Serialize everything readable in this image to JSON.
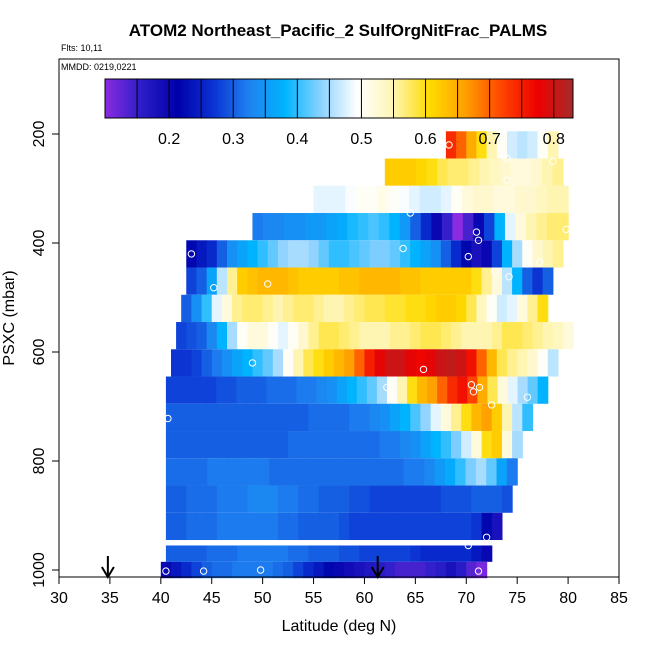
{
  "chart_data": {
    "type": "heatmap",
    "title": "ATOM2 Northeast_Pacific_2 SulfOrgNitFrac_PALMS",
    "flights_label": "Flts: 10,11",
    "date_label": "MMDD: 0219,0221",
    "xlabel": "Latitude (deg N)",
    "ylabel": "PSXC (mbar)",
    "xlim": [
      30,
      85
    ],
    "ylim": [
      1010,
      0
    ],
    "x_ticks": [
      30,
      35,
      40,
      45,
      50,
      55,
      60,
      65,
      70,
      75,
      80,
      85
    ],
    "y_ticks": [
      200,
      400,
      600,
      800,
      1000
    ],
    "y_reversed": true,
    "colorbar": {
      "range": [
        0.1,
        0.83
      ],
      "ticks": [
        0.2,
        0.3,
        0.4,
        0.5,
        0.6,
        0.7,
        0.8
      ],
      "divisions": [
        0.15,
        0.2,
        0.25,
        0.3,
        0.35,
        0.4,
        0.45,
        0.5,
        0.55,
        0.6,
        0.65,
        0.7,
        0.75,
        0.8
      ],
      "colors": [
        "#8a2be2",
        "#2b1ec8",
        "#0000aa",
        "#0a32d2",
        "#1e82f0",
        "#00b4ff",
        "#8cd2ff",
        "#ffffff",
        "#fff5b4",
        "#ffdc00",
        "#ffa000",
        "#ff4600",
        "#ee0000",
        "#a52a2a"
      ]
    },
    "layers": [
      {
        "pressure": 220,
        "lat_start": 68,
        "lat_end": 79,
        "values": [
          0.74,
          0.7,
          0.65,
          0.6,
          0.55,
          0.5,
          0.47,
          0.46,
          0.47,
          0.5,
          0.55
        ]
      },
      {
        "pressure": 270,
        "lat_start": 62,
        "lat_end": 79.5,
        "values": [
          0.62,
          0.62,
          0.62,
          0.61,
          0.6,
          0.58,
          0.57,
          0.57,
          0.56,
          0.55,
          0.54,
          0.53,
          0.52,
          0.52,
          0.53,
          0.55,
          0.56
        ]
      },
      {
        "pressure": 320,
        "lat_start": 55,
        "lat_end": 80,
        "values": [
          0.48,
          0.48,
          0.48,
          0.49,
          0.5,
          0.5,
          0.51,
          0.5,
          0.49,
          0.48,
          0.47,
          0.47,
          0.48,
          0.5,
          0.52,
          0.53,
          0.53,
          0.52,
          0.52,
          0.53,
          0.53,
          0.54,
          0.55,
          0.55
        ]
      },
      {
        "pressure": 370,
        "lat_start": 49,
        "lat_end": 80,
        "values": [
          0.32,
          0.33,
          0.33,
          0.34,
          0.34,
          0.35,
          0.35,
          0.36,
          0.37,
          0.39,
          0.4,
          0.41,
          0.4,
          0.38,
          0.35,
          0.3,
          0.26,
          0.2,
          0.15,
          0.1,
          0.14,
          0.2,
          0.28,
          0.38,
          0.48,
          0.52,
          0.55,
          0.56,
          0.57,
          0.57
        ]
      },
      {
        "pressure": 420,
        "lat_start": 42.5,
        "lat_end": 79.5,
        "values": [
          0.22,
          0.24,
          0.26,
          0.3,
          0.34,
          0.36,
          0.38,
          0.4,
          0.42,
          0.44,
          0.45,
          0.45,
          0.44,
          0.42,
          0.4,
          0.4,
          0.41,
          0.42,
          0.43,
          0.43,
          0.42,
          0.4,
          0.38,
          0.36,
          0.34,
          0.3,
          0.26,
          0.22,
          0.18,
          0.2,
          0.28,
          0.38,
          0.45,
          0.5,
          0.53,
          0.55,
          0.56
        ]
      },
      {
        "pressure": 470,
        "lat_start": 42.5,
        "lat_end": 78.5,
        "values": [
          0.28,
          0.3,
          0.36,
          0.46,
          0.56,
          0.62,
          0.63,
          0.64,
          0.64,
          0.64,
          0.63,
          0.62,
          0.62,
          0.62,
          0.62,
          0.63,
          0.63,
          0.64,
          0.64,
          0.64,
          0.64,
          0.63,
          0.63,
          0.62,
          0.62,
          0.62,
          0.62,
          0.62,
          0.6,
          0.56,
          0.52,
          0.46,
          0.38,
          0.3,
          0.27,
          0.3
        ]
      },
      {
        "pressure": 520,
        "lat_start": 42,
        "lat_end": 78,
        "values": [
          0.3,
          0.34,
          0.4,
          0.48,
          0.52,
          0.56,
          0.57,
          0.57,
          0.56,
          0.55,
          0.56,
          0.57,
          0.57,
          0.56,
          0.55,
          0.55,
          0.56,
          0.57,
          0.58,
          0.58,
          0.59,
          0.59,
          0.6,
          0.6,
          0.61,
          0.62,
          0.62,
          0.61,
          0.58,
          0.54,
          0.5,
          0.47,
          0.48,
          0.52,
          0.56,
          0.6
        ]
      },
      {
        "pressure": 570,
        "lat_start": 41.5,
        "lat_end": 80.5,
        "values": [
          0.28,
          0.29,
          0.3,
          0.33,
          0.38,
          0.45,
          0.5,
          0.52,
          0.52,
          0.5,
          0.48,
          0.5,
          0.53,
          0.56,
          0.58,
          0.58,
          0.57,
          0.56,
          0.55,
          0.55,
          0.55,
          0.56,
          0.56,
          0.57,
          0.58,
          0.58,
          0.57,
          0.56,
          0.55,
          0.55,
          0.55,
          0.56,
          0.58,
          0.58,
          0.57,
          0.56,
          0.55,
          0.54,
          0.52
        ]
      },
      {
        "pressure": 620,
        "lat_start": 41,
        "lat_end": 79,
        "values": [
          0.27,
          0.27,
          0.28,
          0.3,
          0.32,
          0.34,
          0.36,
          0.38,
          0.4,
          0.42,
          0.45,
          0.5,
          0.55,
          0.58,
          0.6,
          0.62,
          0.64,
          0.66,
          0.7,
          0.75,
          0.78,
          0.8,
          0.8,
          0.78,
          0.77,
          0.78,
          0.8,
          0.81,
          0.8,
          0.76,
          0.7,
          0.64,
          0.58,
          0.56,
          0.55,
          0.53,
          0.5,
          0.46
        ]
      },
      {
        "pressure": 670,
        "lat_start": 40.5,
        "lat_end": 78,
        "values": [
          0.28,
          0.28,
          0.28,
          0.28,
          0.28,
          0.29,
          0.29,
          0.3,
          0.3,
          0.3,
          0.31,
          0.31,
          0.31,
          0.32,
          0.32,
          0.33,
          0.34,
          0.36,
          0.38,
          0.4,
          0.42,
          0.45,
          0.5,
          0.55,
          0.6,
          0.64,
          0.66,
          0.7,
          0.74,
          0.76,
          0.72,
          0.65,
          0.58,
          0.52,
          0.48,
          0.45,
          0.42,
          0.38
        ]
      },
      {
        "pressure": 720,
        "lat_start": 40.5,
        "lat_end": 76.5,
        "values": [
          0.3,
          0.3,
          0.3,
          0.3,
          0.3,
          0.3,
          0.3,
          0.3,
          0.3,
          0.3,
          0.3,
          0.3,
          0.3,
          0.3,
          0.31,
          0.31,
          0.31,
          0.31,
          0.32,
          0.32,
          0.33,
          0.34,
          0.36,
          0.38,
          0.41,
          0.44,
          0.48,
          0.52,
          0.56,
          0.6,
          0.64,
          0.66,
          0.62,
          0.55,
          0.46,
          0.4
        ]
      },
      {
        "pressure": 770,
        "lat_start": 40.5,
        "lat_end": 75.5,
        "values": [
          0.3,
          0.3,
          0.3,
          0.3,
          0.3,
          0.3,
          0.3,
          0.3,
          0.3,
          0.3,
          0.3,
          0.3,
          0.31,
          0.31,
          0.31,
          0.31,
          0.31,
          0.31,
          0.31,
          0.31,
          0.31,
          0.32,
          0.32,
          0.33,
          0.34,
          0.36,
          0.38,
          0.4,
          0.43,
          0.47,
          0.52,
          0.6,
          0.62,
          0.52,
          0.45
        ]
      },
      {
        "pressure": 820,
        "lat_start": 40.5,
        "lat_end": 75,
        "values": [
          0.31,
          0.31,
          0.31,
          0.31,
          0.32,
          0.32,
          0.32,
          0.32,
          0.32,
          0.32,
          0.31,
          0.31,
          0.31,
          0.31,
          0.31,
          0.31,
          0.31,
          0.31,
          0.31,
          0.31,
          0.31,
          0.31,
          0.31,
          0.32,
          0.32,
          0.33,
          0.35,
          0.37,
          0.4,
          0.43,
          0.45,
          0.42,
          0.36,
          0.32
        ]
      },
      {
        "pressure": 870,
        "lat_start": 40.5,
        "lat_end": 74.5,
        "values": [
          0.3,
          0.3,
          0.31,
          0.31,
          0.31,
          0.32,
          0.32,
          0.32,
          0.33,
          0.33,
          0.33,
          0.32,
          0.32,
          0.31,
          0.31,
          0.3,
          0.3,
          0.3,
          0.29,
          0.29,
          0.28,
          0.28,
          0.28,
          0.28,
          0.28,
          0.28,
          0.28,
          0.29,
          0.29,
          0.29,
          0.3,
          0.3,
          0.3,
          0.29
        ]
      },
      {
        "pressure": 920,
        "lat_start": 40.5,
        "lat_end": 73.5,
        "values": [
          0.3,
          0.3,
          0.31,
          0.31,
          0.31,
          0.32,
          0.32,
          0.32,
          0.32,
          0.32,
          0.32,
          0.31,
          0.31,
          0.3,
          0.3,
          0.3,
          0.3,
          0.29,
          0.28,
          0.28,
          0.28,
          0.28,
          0.28,
          0.28,
          0.28,
          0.28,
          0.28,
          0.28,
          0.28,
          0.28,
          0.27,
          0.22,
          0.18
        ]
      },
      {
        "pressure": 970,
        "lat_start": 40.5,
        "lat_end": 72.5,
        "values": [
          0.3,
          0.3,
          0.3,
          0.3,
          0.31,
          0.31,
          0.31,
          0.32,
          0.32,
          0.32,
          0.32,
          0.32,
          0.31,
          0.31,
          0.3,
          0.3,
          0.3,
          0.29,
          0.29,
          0.28,
          0.28,
          0.28,
          0.28,
          0.28,
          0.27,
          0.26,
          0.26,
          0.26,
          0.26,
          0.26,
          0.24,
          0.2
        ]
      },
      {
        "pressure": 1000,
        "lat_start": 40,
        "lat_end": 72,
        "values": [
          0.2,
          0.24,
          0.26,
          0.28,
          0.3,
          0.31,
          0.31,
          0.32,
          0.32,
          0.32,
          0.32,
          0.31,
          0.3,
          0.28,
          0.26,
          0.24,
          0.22,
          0.2,
          0.19,
          0.18,
          0.17,
          0.16,
          0.15,
          0.14,
          0.14,
          0.14,
          0.15,
          0.16,
          0.18,
          0.16,
          0.13,
          0.11
        ]
      }
    ],
    "markers": [
      {
        "lat": 68.3,
        "p": 220
      },
      {
        "lat": 74,
        "p": 245
      },
      {
        "lat": 78.5,
        "p": 250
      },
      {
        "lat": 74,
        "p": 285
      },
      {
        "lat": 64.5,
        "p": 345
      },
      {
        "lat": 71,
        "p": 380
      },
      {
        "lat": 71.2,
        "p": 395
      },
      {
        "lat": 79.8,
        "p": 375
      },
      {
        "lat": 63.8,
        "p": 410
      },
      {
        "lat": 70.2,
        "p": 425
      },
      {
        "lat": 77.2,
        "p": 435
      },
      {
        "lat": 43,
        "p": 420
      },
      {
        "lat": 72.8,
        "p": 452
      },
      {
        "lat": 74.2,
        "p": 462
      },
      {
        "lat": 45.2,
        "p": 482
      },
      {
        "lat": 50.5,
        "p": 475
      },
      {
        "lat": 49,
        "p": 620
      },
      {
        "lat": 65.8,
        "p": 632
      },
      {
        "lat": 62.2,
        "p": 665
      },
      {
        "lat": 70.5,
        "p": 660
      },
      {
        "lat": 70.7,
        "p": 673
      },
      {
        "lat": 71.3,
        "p": 665
      },
      {
        "lat": 72.5,
        "p": 697
      },
      {
        "lat": 76,
        "p": 683
      },
      {
        "lat": 40.7,
        "p": 722
      },
      {
        "lat": 70.2,
        "p": 955
      },
      {
        "lat": 72,
        "p": 940
      },
      {
        "lat": 40.5,
        "p": 1002
      },
      {
        "lat": 44.2,
        "p": 1002
      },
      {
        "lat": 49.8,
        "p": 1000
      },
      {
        "lat": 71.2,
        "p": 1002
      }
    ],
    "arrows": [
      34.8,
      61.3
    ]
  }
}
